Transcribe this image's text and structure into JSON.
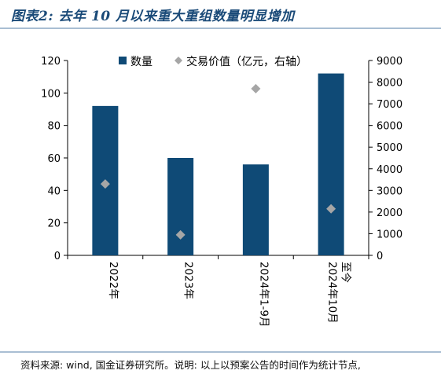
{
  "title": "图表2: 去年 10 月以来重大重组数量明显增加",
  "source": "资料来源: wind, 国金证券研究所。说明: 以上以预案公告的时间作为统计节点,",
  "colors": {
    "bar": "#0f4a76",
    "marker": "#a6a6a6",
    "title": "#1a4a78",
    "rule": "#a9bed3"
  },
  "chart_data": {
    "type": "bar",
    "categories": [
      "2022年",
      "2023年",
      "2024年1-9月",
      "2024年10月至今"
    ],
    "category_lines": [
      [
        "2022年"
      ],
      [
        "2023年"
      ],
      [
        "2024年1-9月"
      ],
      [
        "2024年10月",
        "至今"
      ]
    ],
    "series": [
      {
        "name": "数量",
        "type": "bar",
        "axis": "left",
        "values": [
          92,
          60,
          56,
          112
        ]
      },
      {
        "name": "交易价值（亿元，右轴）",
        "type": "scatter",
        "marker": "diamond",
        "axis": "right",
        "values": [
          3300,
          950,
          7700,
          2150
        ]
      }
    ],
    "y_left": {
      "min": 0,
      "max": 120,
      "ticks": [
        0,
        20,
        40,
        60,
        80,
        100,
        120
      ]
    },
    "y_right": {
      "min": 0,
      "max": 9000,
      "ticks": [
        0,
        1000,
        2000,
        3000,
        4000,
        5000,
        6000,
        7000,
        8000,
        9000
      ]
    },
    "legend_position": "top-center",
    "grid": false
  }
}
